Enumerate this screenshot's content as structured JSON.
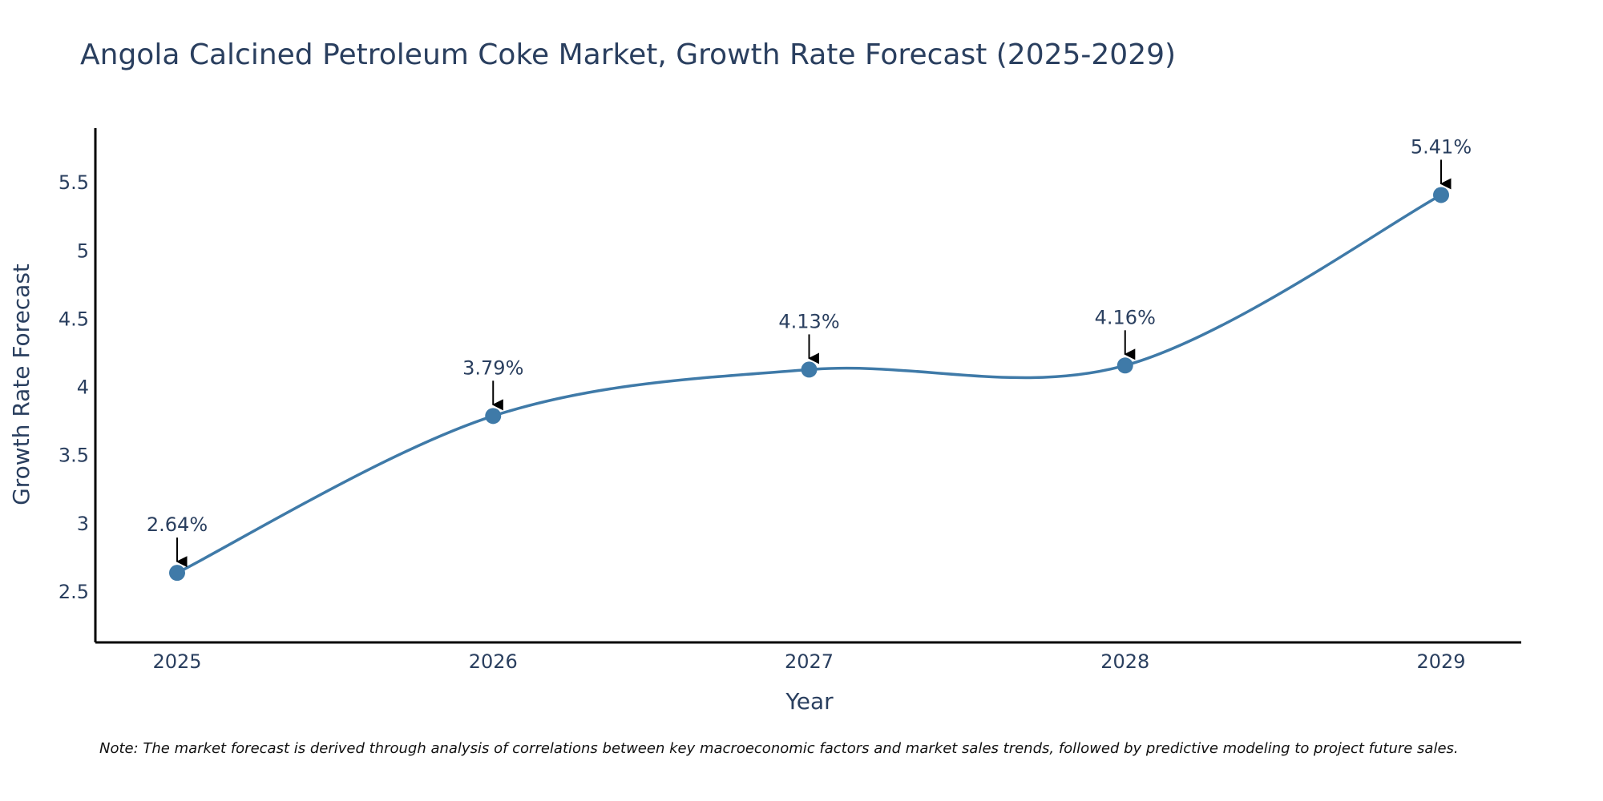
{
  "colors": {
    "line": "#3f7aa8",
    "marker": "#3f7aa8",
    "axis": "#000000",
    "arrow": "#000000",
    "text": "#2a3f5f"
  },
  "note": "Note: The market forecast is derived through analysis of correlations between key macroeconomic factors and market sales trends, followed by predictive modeling to project future sales.",
  "chart_data": {
    "type": "line",
    "title": "Angola Calcined Petroleum Coke Market, Growth Rate Forecast (2025-2029)",
    "xlabel": "Year",
    "ylabel": "Growth Rate Forecast",
    "categories": [
      "2025",
      "2026",
      "2027",
      "2028",
      "2029"
    ],
    "series": [
      {
        "name": "Growth Rate Forecast",
        "values": [
          2.64,
          3.79,
          4.13,
          4.16,
          5.41
        ],
        "labels": [
          "2.64%",
          "3.79%",
          "4.13%",
          "4.16%",
          "5.41%"
        ]
      }
    ],
    "ylim": [
      2.13,
      5.9
    ],
    "yticks": [
      2.5,
      3,
      3.5,
      4,
      4.5,
      5,
      5.5
    ],
    "ytick_labels": [
      "2.5",
      "3",
      "3.5",
      "4",
      "4.5",
      "5",
      "5.5"
    ],
    "grid": false,
    "line_shape": "spline",
    "markers": true,
    "annotation_arrows": true
  }
}
